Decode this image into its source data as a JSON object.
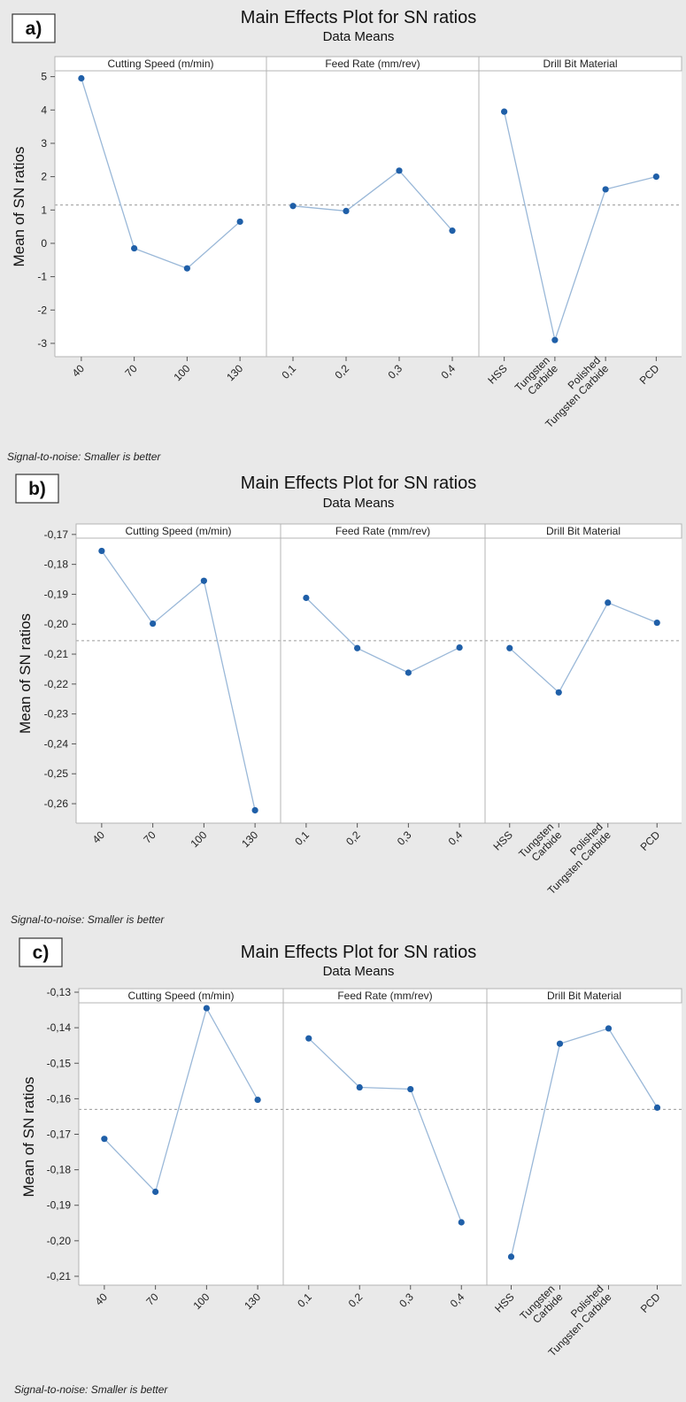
{
  "figure": {
    "colors": {
      "background": "#e9e9e9",
      "plot_bg": "#ffffff",
      "series": "#1f5fa8",
      "line": "#9ab8d8",
      "frame": "#b4b4b4",
      "reference": "#9a9a9a"
    },
    "footnote_label": "Signal-to-noise: Smaller is better"
  },
  "chart_data": [
    {
      "panel_label": "a)",
      "type": "line",
      "title": "Main Effects Plot for SN ratios",
      "subtitle": "Data Means",
      "ylabel": "Mean of SN ratios",
      "xlabel": "",
      "ylim": [
        -3.4,
        5.6
      ],
      "yticks": [
        5,
        4,
        3,
        2,
        1,
        0,
        -1,
        -2,
        -3
      ],
      "yticklabels": [
        "5",
        "4",
        "3",
        "2",
        "1",
        "0",
        "-1",
        "-2",
        "-3"
      ],
      "reference_line": 1.15,
      "grid": false,
      "footnote": "Signal-to-noise: Smaller is better",
      "factors": [
        {
          "name": "Cutting Speed (m/min)",
          "levels": [
            "40",
            "70",
            "100",
            "130"
          ],
          "values": [
            4.95,
            -0.15,
            -0.75,
            0.65
          ]
        },
        {
          "name": "Feed Rate (mm/rev)",
          "levels": [
            "0,1",
            "0,2",
            "0,3",
            "0,4"
          ],
          "values": [
            1.12,
            0.97,
            2.18,
            0.38
          ]
        },
        {
          "name": "Drill Bit Material",
          "levels": [
            "HSS",
            "Tungsten\nCarbide",
            "Polished\nTungsten Carbide",
            "PCD"
          ],
          "values": [
            3.95,
            -2.9,
            1.62,
            2.0
          ]
        }
      ]
    },
    {
      "panel_label": "b)",
      "type": "line",
      "title": "Main Effects Plot for SN ratios",
      "subtitle": "Data Means",
      "ylabel": "Mean of SN ratios",
      "xlabel": "",
      "ylim": [
        -0.2665,
        -0.1665
      ],
      "yticks": [
        -0.17,
        -0.18,
        -0.19,
        -0.2,
        -0.21,
        -0.22,
        -0.23,
        -0.24,
        -0.25,
        -0.26
      ],
      "yticklabels": [
        "-0,17",
        "-0,18",
        "-0,19",
        "-0,20",
        "-0,21",
        "-0,22",
        "-0,23",
        "-0,24",
        "-0,25",
        "-0,26"
      ],
      "reference_line": -0.2055,
      "grid": false,
      "footnote": "Signal-to-noise: Smaller is better",
      "factors": [
        {
          "name": "Cutting Speed (m/min)",
          "levels": [
            "40",
            "70",
            "100",
            "130"
          ],
          "values": [
            -0.1755,
            -0.1998,
            -0.1855,
            -0.2622
          ]
        },
        {
          "name": "Feed Rate (mm/rev)",
          "levels": [
            "0,1",
            "0,2",
            "0,3",
            "0,4"
          ],
          "values": [
            -0.1912,
            -0.208,
            -0.2162,
            -0.2078
          ]
        },
        {
          "name": "Drill Bit Material",
          "levels": [
            "HSS",
            "Tungsten\nCarbide",
            "Polished\nTungsten Carbide",
            "PCD"
          ],
          "values": [
            -0.208,
            -0.2228,
            -0.1928,
            -0.1995
          ]
        }
      ]
    },
    {
      "panel_label": "c)",
      "type": "line",
      "title": "Main Effects Plot for SN ratios",
      "subtitle": "Data Means",
      "ylabel": "Mean of SN ratios",
      "xlabel": "",
      "ylim": [
        -0.2125,
        -0.129
      ],
      "yticks": [
        -0.13,
        -0.14,
        -0.15,
        -0.16,
        -0.17,
        -0.18,
        -0.19,
        -0.2,
        -0.21
      ],
      "yticklabels": [
        "-0,13",
        "-0,14",
        "-0,15",
        "-0,16",
        "-0,17",
        "-0,18",
        "-0,19",
        "-0,20",
        "-0,21"
      ],
      "reference_line": -0.163,
      "grid": false,
      "footnote": "Signal-to-noise: Smaller is better",
      "factors": [
        {
          "name": "Cutting Speed (m/min)",
          "levels": [
            "40",
            "70",
            "100",
            "130"
          ],
          "values": [
            -0.1713,
            -0.1862,
            -0.1345,
            -0.1603
          ]
        },
        {
          "name": "Feed Rate (mm/rev)",
          "levels": [
            "0,1",
            "0,2",
            "0,3",
            "0,4"
          ],
          "values": [
            -0.143,
            -0.1568,
            -0.1573,
            -0.1948
          ]
        },
        {
          "name": "Drill Bit Material",
          "levels": [
            "HSS",
            "Tungsten\nCarbide",
            "Polished\nTungsten Carbide",
            "PCD"
          ],
          "values": [
            -0.2045,
            -0.1445,
            -0.1402,
            -0.1625
          ]
        }
      ]
    }
  ]
}
